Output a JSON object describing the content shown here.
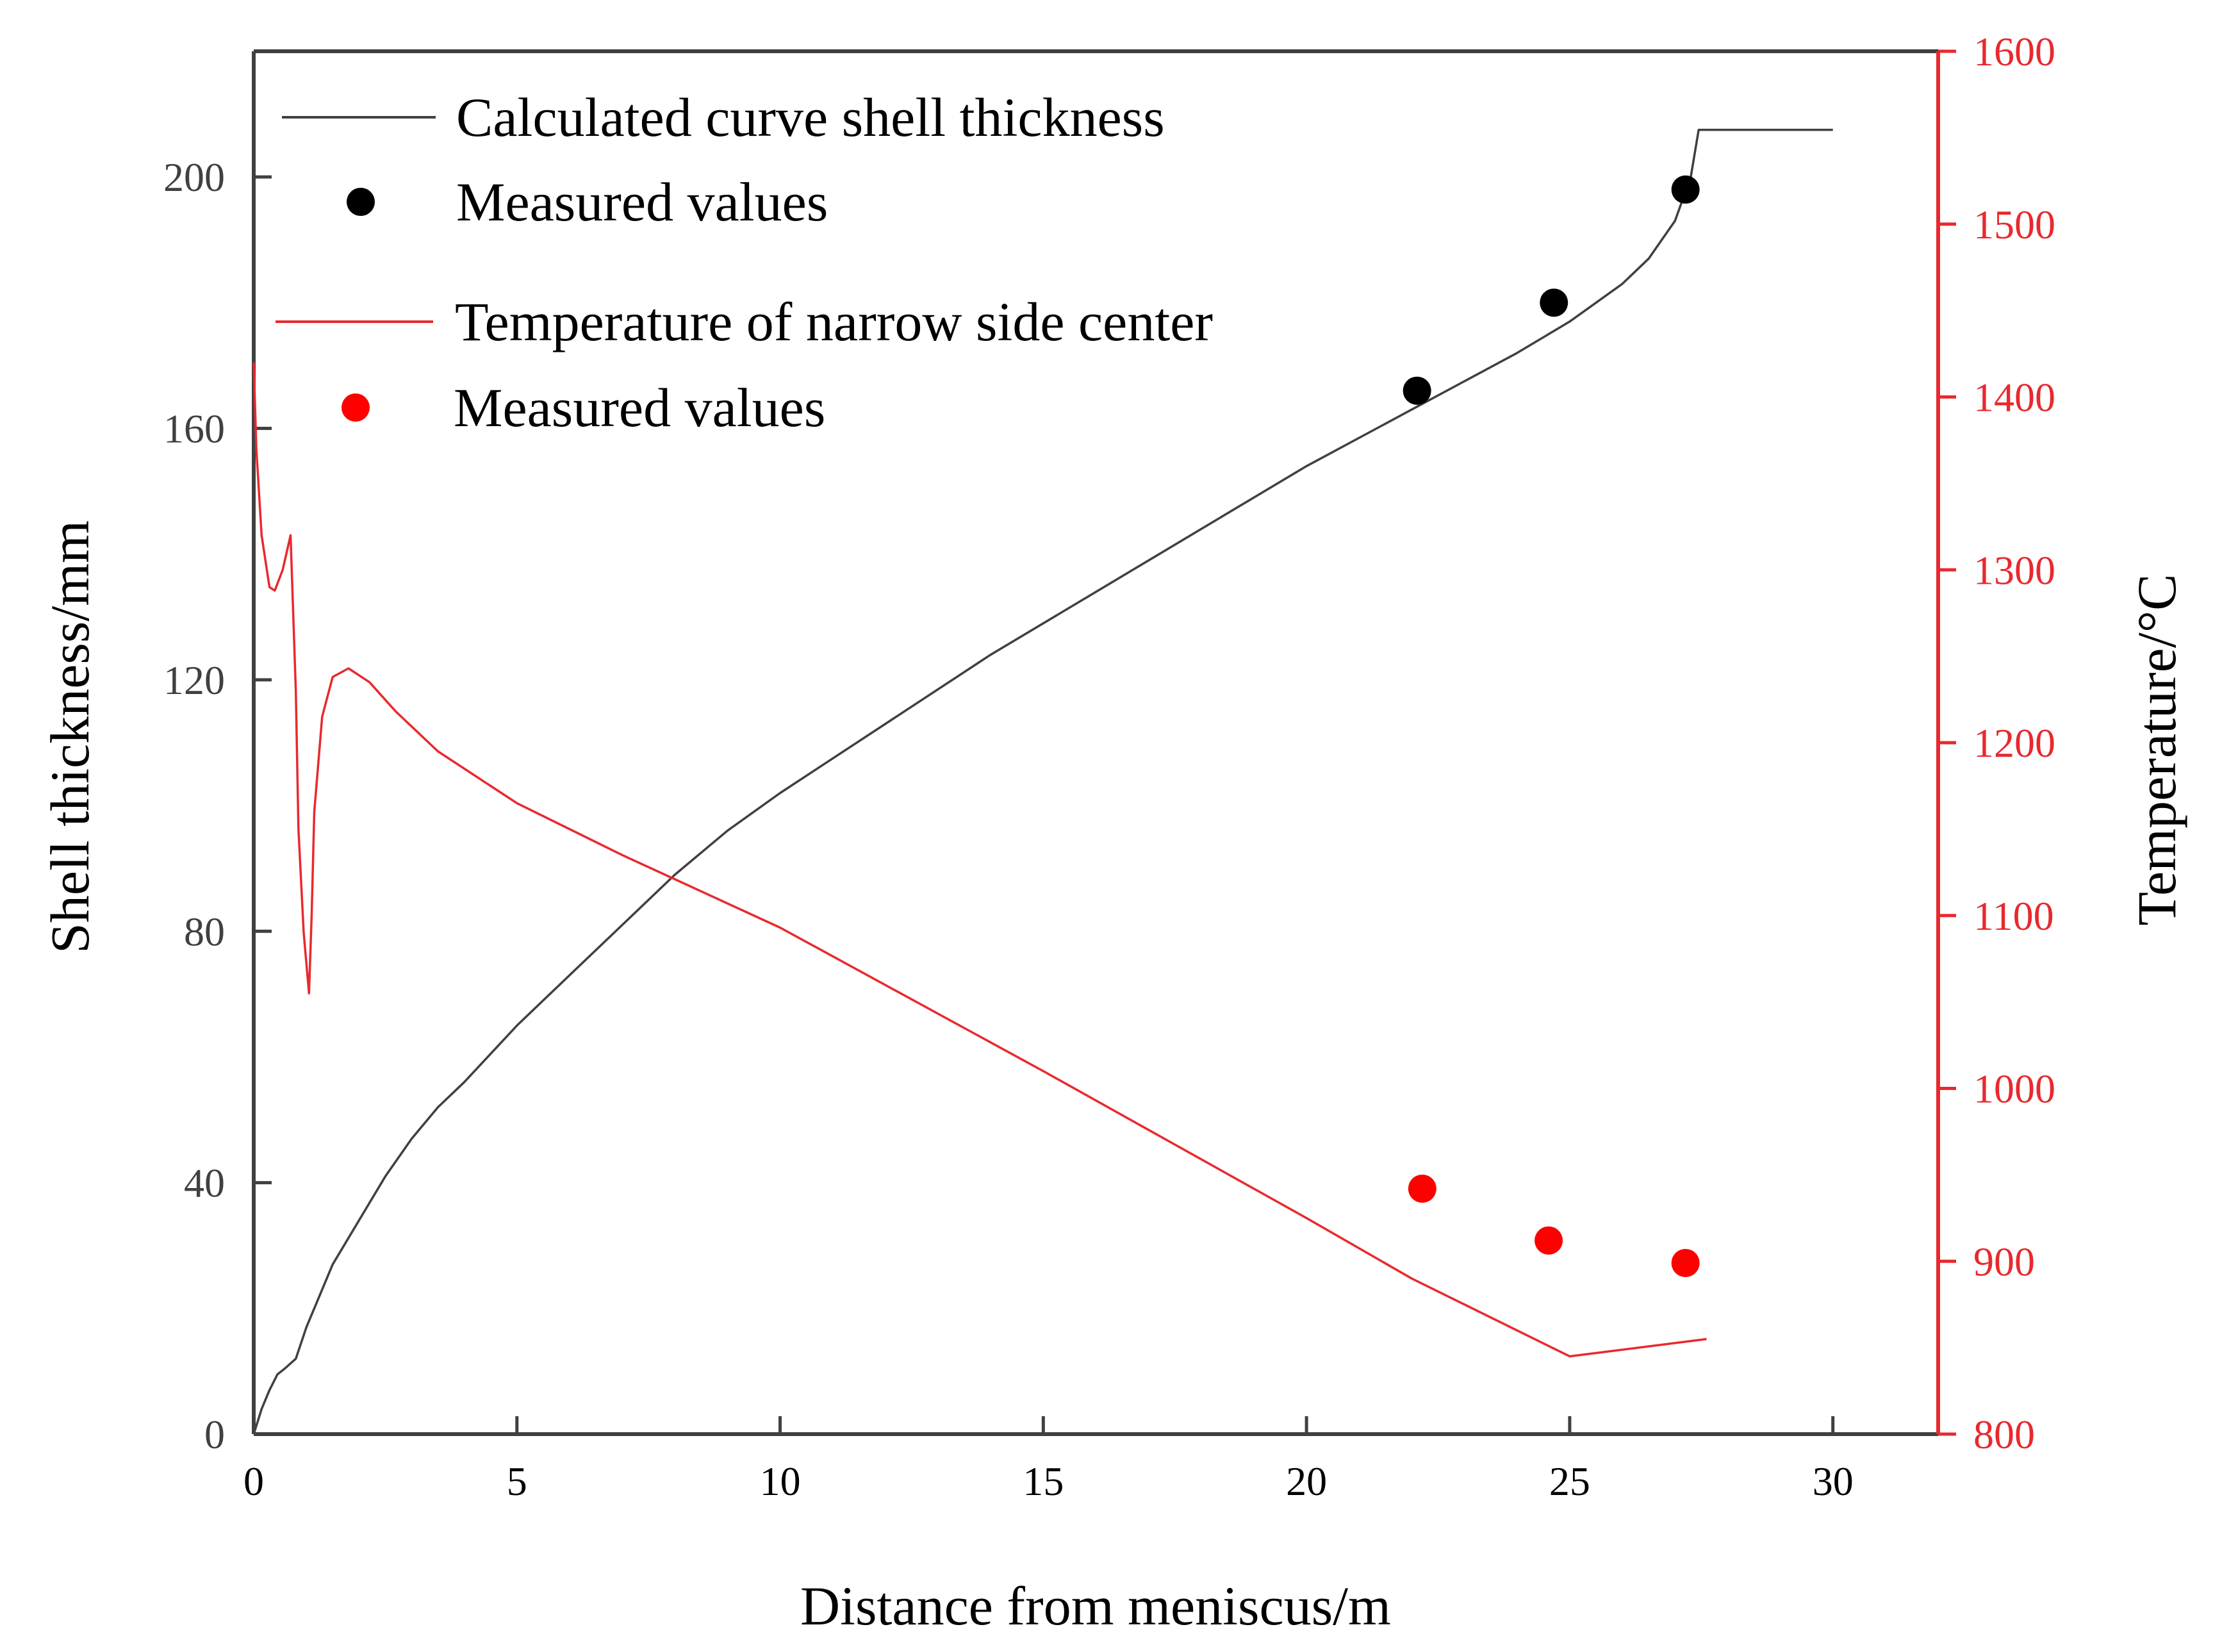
{
  "chart_data": {
    "type": "line",
    "title": "",
    "xlabel": "Distance from meniscus/m",
    "ylabel_left": "Shell thickness/mm",
    "ylabel_right": "Temperature/°C",
    "xlim": [
      0,
      32
    ],
    "ylim_left": [
      0,
      220
    ],
    "ylim_right": [
      800,
      1600
    ],
    "x_ticks": [
      "0",
      "5",
      "10",
      "15",
      "20",
      "25",
      "30"
    ],
    "y_ticks_left": [
      "0",
      "40",
      "80",
      "120",
      "160",
      "200"
    ],
    "y_ticks_right": [
      "800",
      "900",
      "1000",
      "1100",
      "1200",
      "1300",
      "1400",
      "1500",
      "1600"
    ],
    "grid": false,
    "legend_position": "top-left",
    "colors": {
      "shell": "#404040",
      "temperature": "#e8292e",
      "measured_shell": "#000000",
      "measured_temp": "#ff0000"
    },
    "series": [
      {
        "name": "Calculated curve shell thickness",
        "axis": "left",
        "style": "line",
        "x": [
          0,
          0.15,
          0.3,
          0.45,
          0.6,
          0.8,
          1.0,
          1.5,
          2.0,
          2.5,
          3.0,
          3.5,
          4.0,
          5.0,
          6.0,
          7.0,
          8.0,
          9.0,
          10.0,
          12.0,
          14.0,
          16.0,
          18.0,
          20.0,
          22.0,
          24.0,
          25.0,
          26.0,
          26.5,
          27.0,
          27.3,
          27.45,
          27.55,
          28.0,
          29.0,
          30.0
        ],
        "y": [
          0,
          4,
          7,
          9.5,
          10.5,
          12,
          17,
          27,
          34,
          41,
          47,
          52,
          56,
          65,
          73,
          81,
          89,
          96,
          102,
          113,
          124,
          134,
          144,
          154,
          163,
          172,
          177,
          183,
          187,
          193,
          200,
          207.5,
          207.5,
          207.5,
          207.5,
          207.5
        ]
      },
      {
        "name": "Measured values",
        "axis": "left",
        "style": "marker",
        "x": [
          22.1,
          24.7,
          27.2
        ],
        "y": [
          166,
          180,
          198
        ]
      },
      {
        "name": "Temperature of narrow side center",
        "axis": "right",
        "style": "line",
        "x": [
          0,
          0.05,
          0.15,
          0.3,
          0.4,
          0.55,
          0.7,
          0.8,
          0.85,
          0.95,
          1.05,
          1.1,
          1.15,
          1.3,
          1.5,
          1.8,
          2.2,
          2.7,
          3.5,
          5.0,
          7.0,
          10.0,
          15.0,
          20.0,
          22.0,
          25.0,
          27.6
        ],
        "y": [
          1420,
          1370,
          1320,
          1290,
          1288,
          1300,
          1320,
          1230,
          1150,
          1090,
          1055,
          1100,
          1160,
          1215,
          1238,
          1243,
          1235,
          1218,
          1195,
          1165,
          1135,
          1093,
          1010,
          925,
          890,
          845,
          855
        ]
      },
      {
        "name": "Measured values",
        "axis": "right",
        "style": "marker",
        "x": [
          22.2,
          24.6,
          27.2
        ],
        "y": [
          942,
          912,
          899
        ]
      }
    ]
  }
}
